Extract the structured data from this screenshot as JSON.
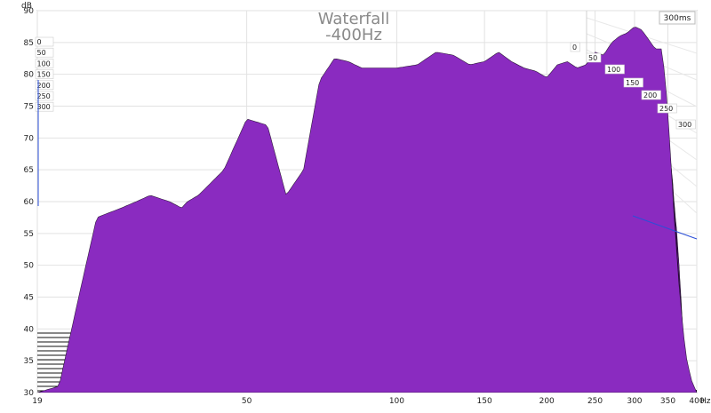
{
  "chart_data": {
    "type": "area",
    "title": "Waterfall",
    "subtitle": "-400Hz",
    "xlabel": "Hz",
    "ylabel": "dB",
    "x_scale": "log",
    "xlim": [
      19,
      400
    ],
    "ylim": [
      30,
      90
    ],
    "x_ticks": [
      19,
      50,
      100,
      150,
      200,
      250,
      300,
      350,
      400
    ],
    "y_ticks": [
      30,
      35,
      40,
      45,
      50,
      55,
      60,
      65,
      70,
      75,
      80,
      85,
      90
    ],
    "time_labels_ms": [
      "0",
      "50",
      "100",
      "150",
      "200",
      "250",
      "300"
    ],
    "time_axis_label": "300ms",
    "series_color": "#8a2bc0",
    "grid": true,
    "front_response": {
      "x": [
        19,
        21,
        23,
        25,
        28,
        30,
        32,
        35,
        37,
        38,
        40,
        45,
        50,
        55,
        60,
        65,
        70,
        75,
        80,
        85,
        90,
        100,
        110,
        120,
        130,
        140,
        150,
        160,
        170,
        180,
        190,
        200,
        210,
        220,
        230,
        240,
        250,
        260,
        270,
        280,
        290,
        300,
        310,
        320,
        330,
        340,
        345,
        350,
        355,
        360,
        370,
        380,
        390,
        400
      ],
      "y": [
        30,
        31,
        45,
        57.5,
        59,
        60,
        61,
        60,
        59,
        60,
        61,
        65,
        73,
        72,
        61,
        65,
        79,
        82.5,
        82,
        81,
        81,
        81,
        81.5,
        83.5,
        83,
        81.5,
        82,
        83.5,
        82,
        81,
        80.5,
        79.5,
        81.5,
        82,
        81,
        81.5,
        83.5,
        83,
        85,
        86,
        86.5,
        87.5,
        87,
        85.5,
        84,
        84,
        80,
        74,
        66,
        58,
        45,
        36,
        32,
        30
      ]
    }
  }
}
